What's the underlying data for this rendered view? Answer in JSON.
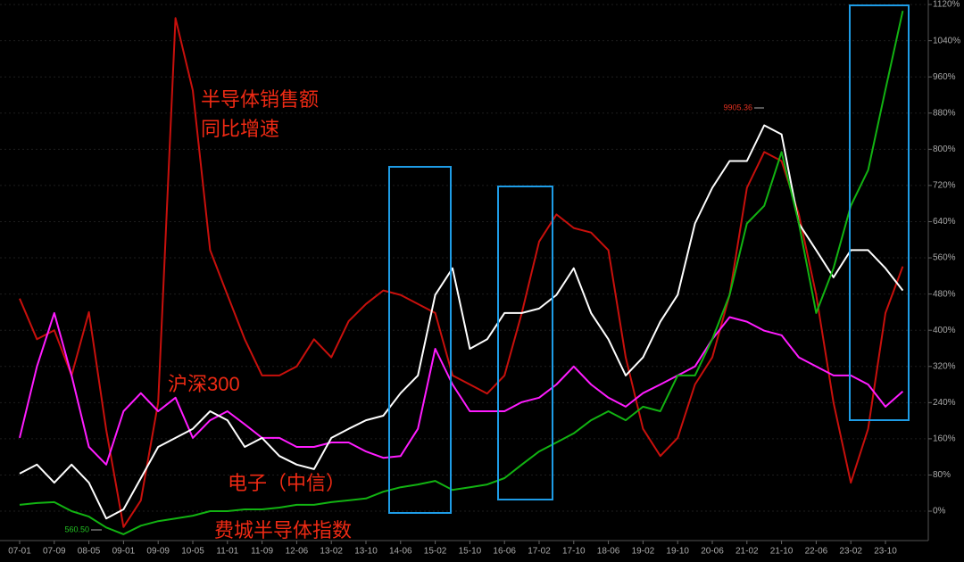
{
  "chart_data": {
    "type": "line",
    "categories": [
      "07-01",
      null,
      "07-09",
      null,
      "08-05",
      null,
      "09-01",
      null,
      "09-09",
      null,
      "10-05",
      null,
      "11-01",
      null,
      "11-09",
      null,
      "12-06",
      null,
      "13-02",
      null,
      "13-10",
      null,
      "14-06",
      null,
      "15-02",
      null,
      "15-10",
      null,
      "16-06",
      null,
      "17-02",
      null,
      "17-10",
      null,
      "18-06",
      null,
      "19-02",
      null,
      "19-10",
      null,
      "20-06",
      null,
      "21-02",
      null,
      "21-10",
      null,
      "22-06",
      null,
      "23-02",
      null,
      "23-10",
      null
    ],
    "series": [
      {
        "name": [
          "半导体销售额",
          "同比增速"
        ],
        "color": "#c8100c",
        "values": [
          470,
          380,
          400,
          300,
          440,
          180,
          -35,
          24,
          240,
          1090,
          930,
          577,
          478,
          380,
          300,
          300,
          320,
          380,
          340,
          420,
          458,
          488,
          478,
          458,
          438,
          300,
          280,
          260,
          300,
          438,
          596,
          656,
          626,
          616,
          577,
          340,
          182,
          122,
          162,
          280,
          340,
          478,
          715,
          794,
          774,
          656,
          478,
          240,
          63,
          182,
          438,
          541
        ]
      },
      {
        "name": "沪深300",
        "color": "#ff1cff",
        "values": [
          162,
          320,
          438,
          300,
          142,
          103,
          221,
          261,
          221,
          251,
          162,
          201,
          221,
          192,
          162,
          162,
          142,
          142,
          152,
          152,
          132,
          118,
          122,
          182,
          359,
          280,
          221,
          221,
          221,
          241,
          251,
          280,
          320,
          280,
          251,
          231,
          261,
          280,
          300,
          320,
          380,
          429,
          419,
          399,
          389,
          340,
          320,
          300,
          300,
          280,
          231,
          265
        ]
      },
      {
        "name": "电子（中信）",
        "color": "#ffffff",
        "values": [
          83,
          103,
          63,
          103,
          63,
          -16,
          4,
          73,
          142,
          162,
          182,
          221,
          201,
          142,
          162,
          122,
          103,
          93,
          162,
          182,
          201,
          211,
          261,
          300,
          478,
          537,
          359,
          380,
          438,
          438,
          448,
          478,
          537,
          438,
          380,
          300,
          340,
          419,
          478,
          636,
          715,
          774,
          774,
          853,
          833,
          636,
          577,
          517,
          577,
          577,
          537,
          488
        ]
      },
      {
        "name": "费城半导体指数",
        "color": "#12b312",
        "values": [
          14,
          18,
          20,
          0,
          -12,
          -36,
          -51,
          -32,
          -22,
          -16,
          -10,
          0,
          0,
          4,
          4,
          8,
          14,
          14,
          20,
          24,
          28,
          43,
          53,
          59,
          67,
          47,
          53,
          59,
          73,
          103,
          132,
          152,
          172,
          201,
          221,
          201,
          231,
          221,
          300,
          300,
          380,
          478,
          636,
          675,
          794,
          636,
          438,
          537,
          675,
          754,
          932,
          1106
        ]
      }
    ],
    "ylim": [
      -65,
      1130
    ],
    "yticks": [
      {
        "value": 0,
        "label": "0%"
      },
      {
        "value": 80,
        "label": "80%"
      },
      {
        "value": 160,
        "label": "160%"
      },
      {
        "value": 240,
        "label": "240%"
      },
      {
        "value": 320,
        "label": "320%"
      },
      {
        "value": 400,
        "label": "400%"
      },
      {
        "value": 480,
        "label": "480%"
      },
      {
        "value": 560,
        "label": "560%"
      },
      {
        "value": 640,
        "label": "640%"
      },
      {
        "value": 720,
        "label": "720%"
      },
      {
        "value": 800,
        "label": "800%"
      },
      {
        "value": 880,
        "label": "880%"
      },
      {
        "value": 960,
        "label": "960%"
      },
      {
        "value": 1040,
        "label": "1040%"
      },
      {
        "value": 1120,
        "label": "1120%"
      }
    ],
    "grid": true,
    "annotations": [
      "9905.36",
      "560.50"
    ]
  }
}
